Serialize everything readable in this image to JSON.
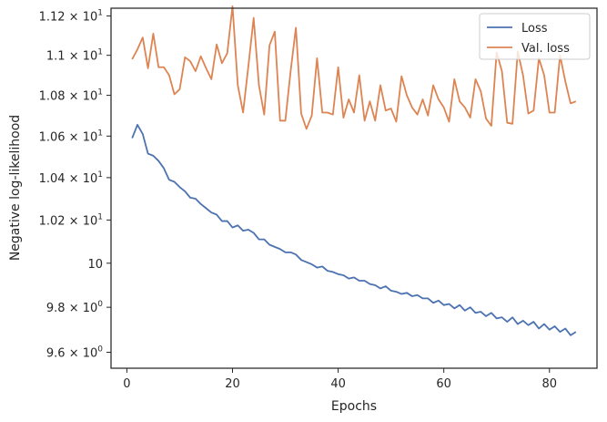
{
  "chart_data": {
    "type": "line",
    "xlabel": "Epochs",
    "ylabel": "Negative log-likelihood",
    "xlim": [
      -3,
      89
    ],
    "ylim": [
      9.53,
      11.24
    ],
    "yscale": "log",
    "grid": false,
    "legend": "top-right",
    "x_ticks": [
      {
        "value": 0,
        "label": "0"
      },
      {
        "value": 20,
        "label": "20"
      },
      {
        "value": 40,
        "label": "40"
      },
      {
        "value": 60,
        "label": "60"
      },
      {
        "value": 80,
        "label": "80"
      }
    ],
    "y_ticks": [
      {
        "value": 9.6,
        "base": "9.6",
        "exp": "0"
      },
      {
        "value": 9.8,
        "base": "9.8",
        "exp": "0"
      },
      {
        "value": 10.0,
        "base": "10",
        "exp": ""
      },
      {
        "value": 10.2,
        "base": "1.02",
        "exp": "1"
      },
      {
        "value": 10.4,
        "base": "1.04",
        "exp": "1"
      },
      {
        "value": 10.6,
        "base": "1.06",
        "exp": "1"
      },
      {
        "value": 10.8,
        "base": "1.08",
        "exp": "1"
      },
      {
        "value": 11.0,
        "base": "1.1",
        "exp": "1"
      },
      {
        "value": 11.2,
        "base": "1.12",
        "exp": "1"
      }
    ],
    "series": [
      {
        "name": "Loss",
        "color": "#4c72b0",
        "x": [
          1,
          2,
          3,
          4,
          5,
          6,
          7,
          8,
          9,
          10,
          11,
          12,
          13,
          14,
          15,
          16,
          17,
          18,
          19,
          20,
          21,
          22,
          23,
          24,
          25,
          26,
          27,
          28,
          29,
          30,
          31,
          32,
          33,
          34,
          35,
          36,
          37,
          38,
          39,
          40,
          41,
          42,
          43,
          44,
          45,
          46,
          47,
          48,
          49,
          50,
          51,
          52,
          53,
          54,
          55,
          56,
          57,
          58,
          59,
          60,
          61,
          62,
          63,
          64,
          65,
          66,
          67,
          68,
          69,
          70,
          71,
          72,
          73,
          74,
          75,
          76,
          77,
          78,
          79,
          80,
          81,
          82,
          83,
          84,
          85
        ],
        "values": [
          10.59,
          10.655,
          10.61,
          10.515,
          10.505,
          10.48,
          10.445,
          10.39,
          10.38,
          10.355,
          10.335,
          10.305,
          10.3,
          10.275,
          10.255,
          10.235,
          10.225,
          10.195,
          10.195,
          10.165,
          10.175,
          10.15,
          10.155,
          10.14,
          10.11,
          10.11,
          10.085,
          10.075,
          10.065,
          10.05,
          10.05,
          10.04,
          10.015,
          10.005,
          9.995,
          9.98,
          9.985,
          9.965,
          9.96,
          9.95,
          9.945,
          9.93,
          9.935,
          9.92,
          9.92,
          9.905,
          9.9,
          9.885,
          9.895,
          9.875,
          9.87,
          9.86,
          9.865,
          9.85,
          9.855,
          9.84,
          9.84,
          9.82,
          9.83,
          9.81,
          9.815,
          9.795,
          9.81,
          9.785,
          9.8,
          9.775,
          9.78,
          9.76,
          9.775,
          9.75,
          9.755,
          9.735,
          9.755,
          9.725,
          9.74,
          9.72,
          9.735,
          9.705,
          9.725,
          9.7,
          9.715,
          9.69,
          9.705,
          9.675,
          9.69
        ]
      },
      {
        "name": "Val. loss",
        "color": "#dd8452",
        "x": [
          1,
          2,
          3,
          4,
          5,
          6,
          7,
          8,
          9,
          10,
          11,
          12,
          13,
          14,
          15,
          16,
          17,
          18,
          19,
          20,
          21,
          22,
          23,
          24,
          25,
          26,
          27,
          28,
          29,
          30,
          31,
          32,
          33,
          34,
          35,
          36,
          37,
          38,
          39,
          40,
          41,
          42,
          43,
          44,
          45,
          46,
          47,
          48,
          49,
          50,
          51,
          52,
          53,
          54,
          55,
          56,
          57,
          58,
          59,
          60,
          61,
          62,
          63,
          64,
          65,
          66,
          67,
          68,
          69,
          70,
          71,
          72,
          73,
          74,
          75,
          76,
          77,
          78,
          79,
          80,
          81,
          82,
          83,
          84,
          85
        ],
        "values": [
          10.98,
          11.03,
          11.09,
          10.935,
          11.11,
          10.94,
          10.94,
          10.9,
          10.805,
          10.83,
          10.99,
          10.97,
          10.92,
          10.995,
          10.935,
          10.88,
          11.055,
          10.96,
          11.01,
          11.25,
          10.85,
          10.715,
          10.945,
          11.19,
          10.85,
          10.705,
          11.05,
          11.12,
          10.675,
          10.675,
          10.92,
          11.14,
          10.71,
          10.635,
          10.7,
          10.985,
          10.715,
          10.715,
          10.705,
          10.94,
          10.69,
          10.78,
          10.715,
          10.9,
          10.675,
          10.77,
          10.675,
          10.85,
          10.725,
          10.735,
          10.67,
          10.895,
          10.8,
          10.74,
          10.705,
          10.78,
          10.7,
          10.85,
          10.78,
          10.74,
          10.67,
          10.88,
          10.77,
          10.74,
          10.69,
          10.88,
          10.82,
          10.685,
          10.65,
          11.015,
          10.92,
          10.665,
          10.66,
          11.02,
          10.9,
          10.71,
          10.725,
          10.985,
          10.9,
          10.715,
          10.715,
          11.0,
          10.87,
          10.76,
          10.77
        ]
      }
    ]
  }
}
